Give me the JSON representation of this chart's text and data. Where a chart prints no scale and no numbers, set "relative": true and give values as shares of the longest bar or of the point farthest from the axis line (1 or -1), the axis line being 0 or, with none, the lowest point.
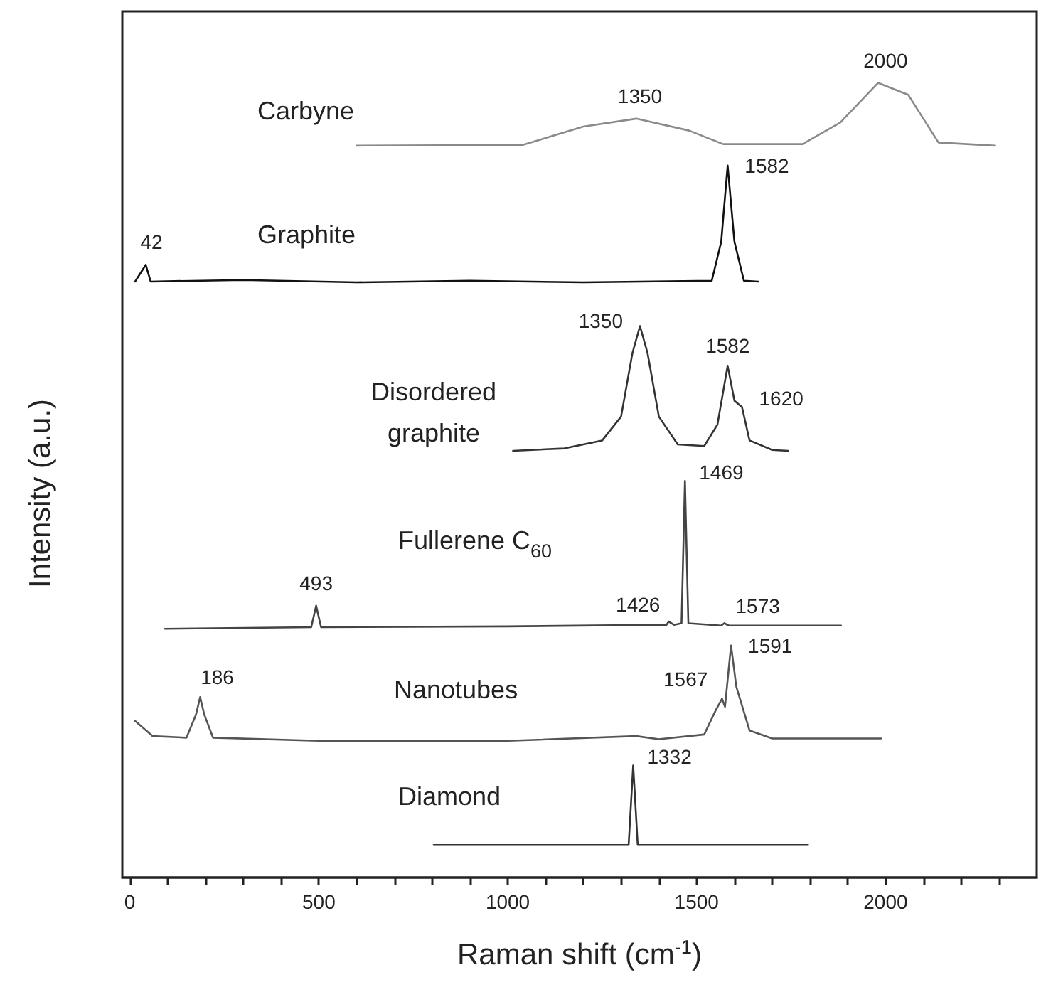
{
  "chart_data": {
    "type": "line",
    "relative": true,
    "xlabel": "Raman shift (cm$^{-1}$)",
    "ylabel": "Intensity (a.u.)",
    "xlim": [
      -20,
      2400
    ],
    "xticks": [
      0,
      {
        "value": 100,
        "label": null
      },
      {
        "value": 200,
        "label": null
      },
      {
        "value": 300,
        "label": null
      },
      {
        "value": 400,
        "label": null
      },
      500,
      {
        "value": 600,
        "label": null
      },
      {
        "value": 700,
        "label": null
      },
      {
        "value": 800,
        "label": null
      },
      {
        "value": 900,
        "label": null
      },
      1000,
      {
        "value": 1100,
        "label": null
      },
      {
        "value": 1200,
        "label": null
      },
      {
        "value": 1300,
        "label": null
      },
      {
        "value": 1400,
        "label": null
      },
      1500,
      {
        "value": 1600,
        "label": null
      },
      {
        "value": 1700,
        "label": null
      },
      {
        "value": 1800,
        "label": null
      },
      {
        "value": 1900,
        "label": null
      },
      2000,
      {
        "value": 2100,
        "label": null
      },
      {
        "value": 2200,
        "label": null
      },
      {
        "value": 2300,
        "label": null
      }
    ],
    "grid": false,
    "marker": "none",
    "line_style": "solid",
    "series": [
      {
        "name": "Carbyne",
        "color": "#8a8a8a",
        "x": [
          600,
          1040,
          1200,
          1340,
          1480,
          1570,
          1780,
          1880,
          1980,
          2060,
          2140,
          2290
        ],
        "values": [
          0.921,
          0.922,
          0.945,
          0.955,
          0.94,
          0.923,
          0.923,
          0.95,
          1.0,
          0.985,
          0.925,
          0.921
        ]
      },
      {
        "name": "Graphite",
        "color": "#111111",
        "x": [
          14,
          42,
          55,
          300,
          600,
          900,
          1200,
          1540,
          1565,
          1582,
          1600,
          1625,
          1663
        ],
        "values": [
          0.75,
          0.771,
          0.75,
          0.752,
          0.749,
          0.751,
          0.749,
          0.751,
          0.8,
          0.896,
          0.8,
          0.751,
          0.75
        ]
      },
      {
        "name": "Disordered graphite",
        "color": "#333333",
        "x": [
          1014,
          1150,
          1250,
          1300,
          1330,
          1350,
          1370,
          1400,
          1450,
          1520,
          1555,
          1582,
          1600,
          1620,
          1640,
          1700,
          1742
        ],
        "values": [
          0.537,
          0.54,
          0.55,
          0.58,
          0.66,
          0.694,
          0.66,
          0.58,
          0.545,
          0.543,
          0.57,
          0.644,
          0.6,
          0.592,
          0.55,
          0.538,
          0.537
        ]
      },
      {
        "name": "Fullerene C$_{60}$",
        "color": "#444444",
        "x": [
          93,
          480,
          493,
          506,
          1000,
          1420,
          1426,
          1440,
          1460,
          1469,
          1478,
          1565,
          1573,
          1585,
          1882
        ],
        "values": [
          0.313,
          0.315,
          0.342,
          0.315,
          0.316,
          0.318,
          0.322,
          0.318,
          0.32,
          0.499,
          0.32,
          0.317,
          0.32,
          0.317,
          0.317
        ]
      },
      {
        "name": "Nanotubes",
        "color": "#555555",
        "x": [
          14,
          60,
          150,
          175,
          186,
          197,
          220,
          500,
          1000,
          1340,
          1400,
          1520,
          1550,
          1567,
          1575,
          1591,
          1605,
          1640,
          1700,
          1988
        ],
        "values": [
          0.197,
          0.178,
          0.176,
          0.205,
          0.227,
          0.205,
          0.176,
          0.172,
          0.172,
          0.178,
          0.174,
          0.18,
          0.21,
          0.225,
          0.215,
          0.292,
          0.24,
          0.185,
          0.175,
          0.175
        ]
      },
      {
        "name": "Diamond",
        "color": "#333333",
        "x": [
          804,
          1320,
          1332,
          1344,
          1795
        ],
        "values": [
          0.041,
          0.041,
          0.141,
          0.041,
          0.041
        ]
      }
    ],
    "annotations": [
      {
        "text": "1350",
        "x": 1350,
        "y": 0.955
      },
      {
        "text": "2000",
        "x": 2000,
        "y": 1.0
      },
      {
        "text": "42",
        "x": 42,
        "y": 0.771
      },
      {
        "text": "1582",
        "x": 1582,
        "y": 0.896
      },
      {
        "text": "1350",
        "x": 1350,
        "y": 0.694
      },
      {
        "text": "1582",
        "x": 1582,
        "y": 0.644
      },
      {
        "text": "1620",
        "x": 1620,
        "y": 0.592
      },
      {
        "text": "1469",
        "x": 1469,
        "y": 0.499
      },
      {
        "text": "493",
        "x": 493,
        "y": 0.342
      },
      {
        "text": "1426",
        "x": 1426,
        "y": 0.322
      },
      {
        "text": "1573",
        "x": 1573,
        "y": 0.32
      },
      {
        "text": "186",
        "x": 186,
        "y": 0.227
      },
      {
        "text": "1567",
        "x": 1567,
        "y": 0.225
      },
      {
        "text": "1591",
        "x": 1591,
        "y": 0.292
      },
      {
        "text": "1332",
        "x": 1332,
        "y": 0.141
      }
    ]
  }
}
